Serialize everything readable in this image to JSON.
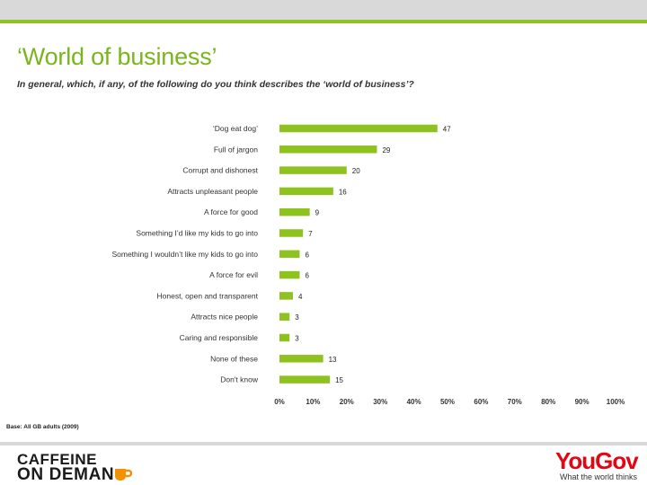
{
  "header": {
    "title": "‘World of business’",
    "question": "In general, which, if any, of the following do you think describes the ‘world of business’?"
  },
  "footer": {
    "base_note": "Base: All GB adults (2009)",
    "left_logo_line1": "CAFFEINE",
    "left_logo_line2": "ON DEMAN",
    "right_logo": "YouGov",
    "right_tagline": "What the world thinks"
  },
  "colors": {
    "accent": "#8dc21f",
    "bar": "#8dc21f",
    "brand_red": "#e30613",
    "band": "#d9d9d9"
  },
  "chart_data": {
    "type": "bar",
    "orientation": "horizontal",
    "categories": [
      "‘Dog eat dog’",
      "Full of jargon",
      "Corrupt and dishonest",
      "Attracts unpleasant people",
      "A force for good",
      "Something I’d like my kids to go into",
      "Something I wouldn’t like my kids to go into",
      "A force for evil",
      "Honest, open and transparent",
      "Attracts nice people",
      "Caring and responsible",
      "None of these",
      "Don't know"
    ],
    "values": [
      47,
      29,
      20,
      16,
      9,
      7,
      6,
      6,
      4,
      3,
      3,
      13,
      15
    ],
    "xlim": [
      0,
      100
    ],
    "xticks": [
      "0%",
      "10%",
      "20%",
      "30%",
      "40%",
      "50%",
      "60%",
      "70%",
      "80%",
      "90%",
      "100%"
    ],
    "grid": false,
    "data_labels": true
  }
}
